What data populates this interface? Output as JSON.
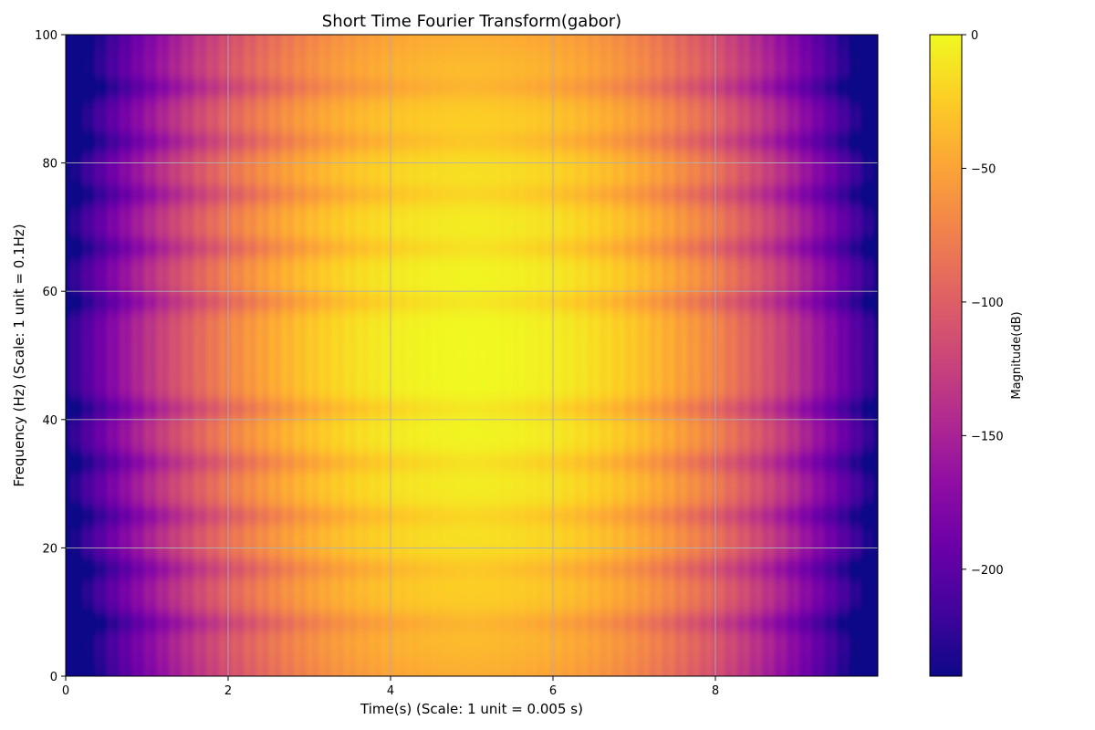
{
  "chart_data": {
    "type": "heatmap",
    "title": "Short Time Fourier Transform(gabor)",
    "xlabel": "Time(s) (Scale: 1 unit = 0.005 s)",
    "ylabel": "Frequency (Hz) (Scale: 1 unit = 0.1Hz)",
    "xlim": [
      0,
      10
    ],
    "ylim": [
      0,
      100
    ],
    "x_ticks": [
      0,
      2,
      4,
      6,
      8
    ],
    "y_ticks": [
      0,
      20,
      40,
      60,
      80,
      100
    ],
    "grid": true,
    "colormap": "plasma",
    "colorbar": {
      "label": "Magnitude(dB)",
      "range": [
        -240,
        0
      ],
      "ticks": [
        0,
        -50,
        -100,
        -150,
        -200
      ],
      "tick_labels": [
        "0",
        "−50",
        "−100",
        "−150",
        "−200"
      ]
    },
    "peak": {
      "time": 5,
      "frequency": 50,
      "magnitude_db": 0
    },
    "dark_band_frequencies": [
      8.3,
      16.7,
      25,
      33.3,
      41.7,
      58.3,
      66.7,
      75,
      83.3,
      91.7
    ],
    "colors": {
      "low": "#0d0887",
      "mid": "#cc4778",
      "high": "#f0f921",
      "grid": "#b0b0b0"
    }
  }
}
